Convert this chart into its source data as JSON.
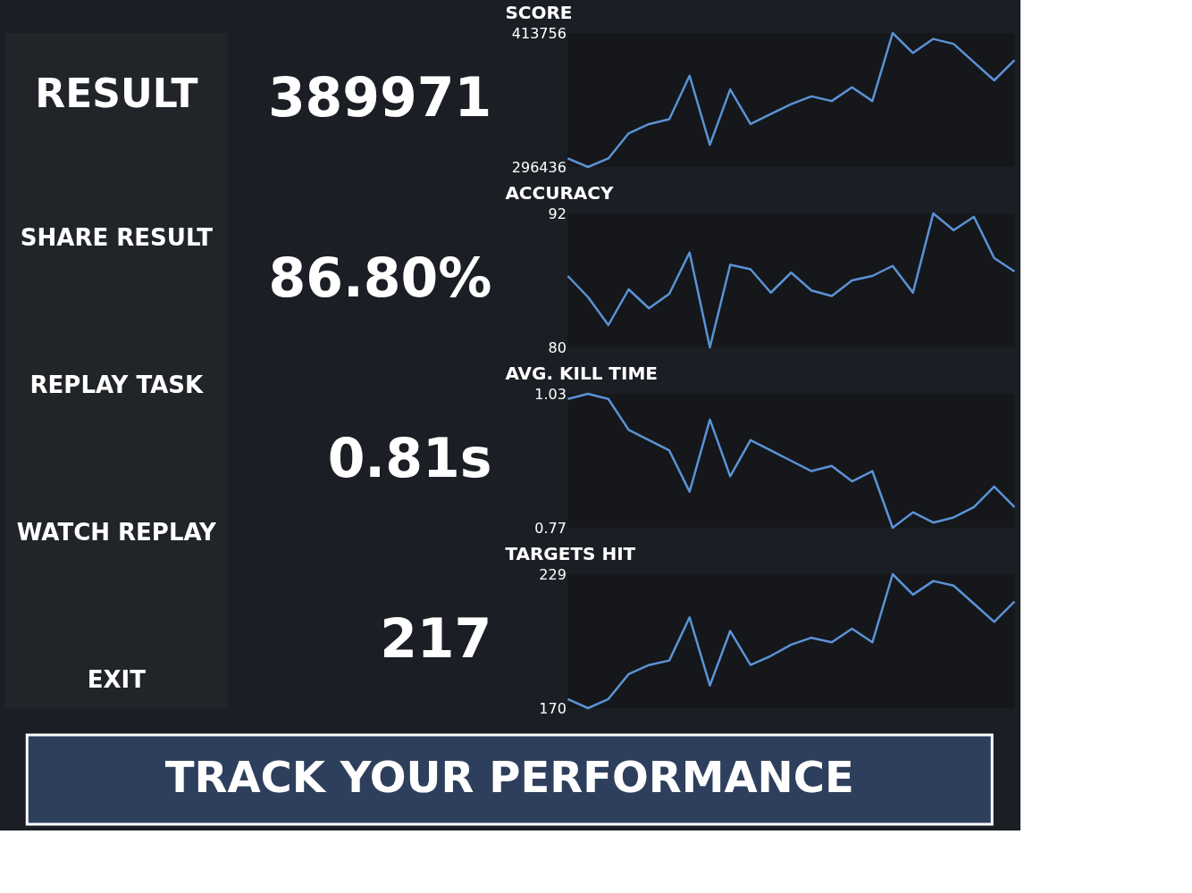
{
  "chart_data": [
    {
      "type": "other",
      "title": "RESULT",
      "subtitle": "TRACK YOUR PERFORMANCE",
      "annotations": [
        "SHARE RESULT",
        "REPLAY TASK",
        "WATCH REPLAY",
        "EXIT"
      ]
    },
    {
      "type": "line",
      "title": "SCORE",
      "annotations": [
        "389971"
      ],
      "categories": [
        null,
        null,
        null,
        null,
        null,
        null,
        null,
        null,
        null,
        null,
        null,
        null,
        null,
        null,
        null,
        null,
        null,
        null,
        null,
        null,
        null,
        null,
        null
      ],
      "ylim": [
        296436,
        413756
      ],
      "yticks": [
        296436,
        413756
      ],
      "series": [
        {
          "color": "#5b93d6",
          "values": [
            303900,
            296436,
            303900,
            325900,
            334000,
            338300,
            376400,
            315900,
            364400,
            334000,
            342900,
            351500,
            358300,
            354200,
            366200,
            354200,
            413756,
            396300,
            408600,
            404300,
            388200,
            372300,
            389971
          ]
        }
      ]
    },
    {
      "type": "line",
      "title": "ACCURACY",
      "annotations": [
        "86.80%"
      ],
      "categories": [
        null,
        null,
        null,
        null,
        null,
        null,
        null,
        null,
        null,
        null,
        null,
        null,
        null,
        null,
        null,
        null,
        null,
        null,
        null,
        null,
        null,
        null,
        null
      ],
      "ylim": [
        80,
        92
      ],
      "yticks": [
        80,
        92
      ],
      "series": [
        {
          "color": "#5b93d6",
          "values": [
            86.4,
            84.5,
            82.0,
            85.2,
            83.5,
            84.8,
            88.5,
            80,
            87.4,
            87.0,
            84.9,
            86.7,
            85.1,
            84.6,
            86.0,
            86.4,
            87.3,
            84.9,
            92,
            90.5,
            91.7,
            88.0,
            86.8
          ]
        }
      ]
    },
    {
      "type": "line",
      "title": "AVG. KILL TIME",
      "annotations": [
        "0.81s"
      ],
      "categories": [
        null,
        null,
        null,
        null,
        null,
        null,
        null,
        null,
        null,
        null,
        null,
        null,
        null,
        null,
        null,
        null,
        null,
        null,
        null,
        null,
        null,
        null,
        null
      ],
      "ylim": [
        0.77,
        1.03
      ],
      "yticks": [
        0.77,
        1.03
      ],
      "series": [
        {
          "color": "#5b93d6",
          "values": [
            1.02,
            1.03,
            1.02,
            0.96,
            0.94,
            0.92,
            0.84,
            0.98,
            0.87,
            0.94,
            0.92,
            0.9,
            0.88,
            0.89,
            0.86,
            0.88,
            0.77,
            0.8,
            0.78,
            0.79,
            0.81,
            0.85,
            0.81
          ]
        }
      ]
    },
    {
      "type": "line",
      "title": "TARGETS HIT",
      "annotations": [
        "217"
      ],
      "categories": [
        null,
        null,
        null,
        null,
        null,
        null,
        null,
        null,
        null,
        null,
        null,
        null,
        null,
        null,
        null,
        null,
        null,
        null,
        null,
        null,
        null,
        null,
        null
      ],
      "ylim": [
        170,
        229
      ],
      "yticks": [
        170,
        229
      ],
      "series": [
        {
          "color": "#5b93d6",
          "values": [
            174,
            170,
            174,
            185,
            189,
            191,
            210,
            180,
            204,
            189,
            193,
            198,
            201,
            199,
            205,
            199,
            229,
            220,
            226,
            224,
            216,
            208,
            217
          ]
        }
      ]
    }
  ]
}
